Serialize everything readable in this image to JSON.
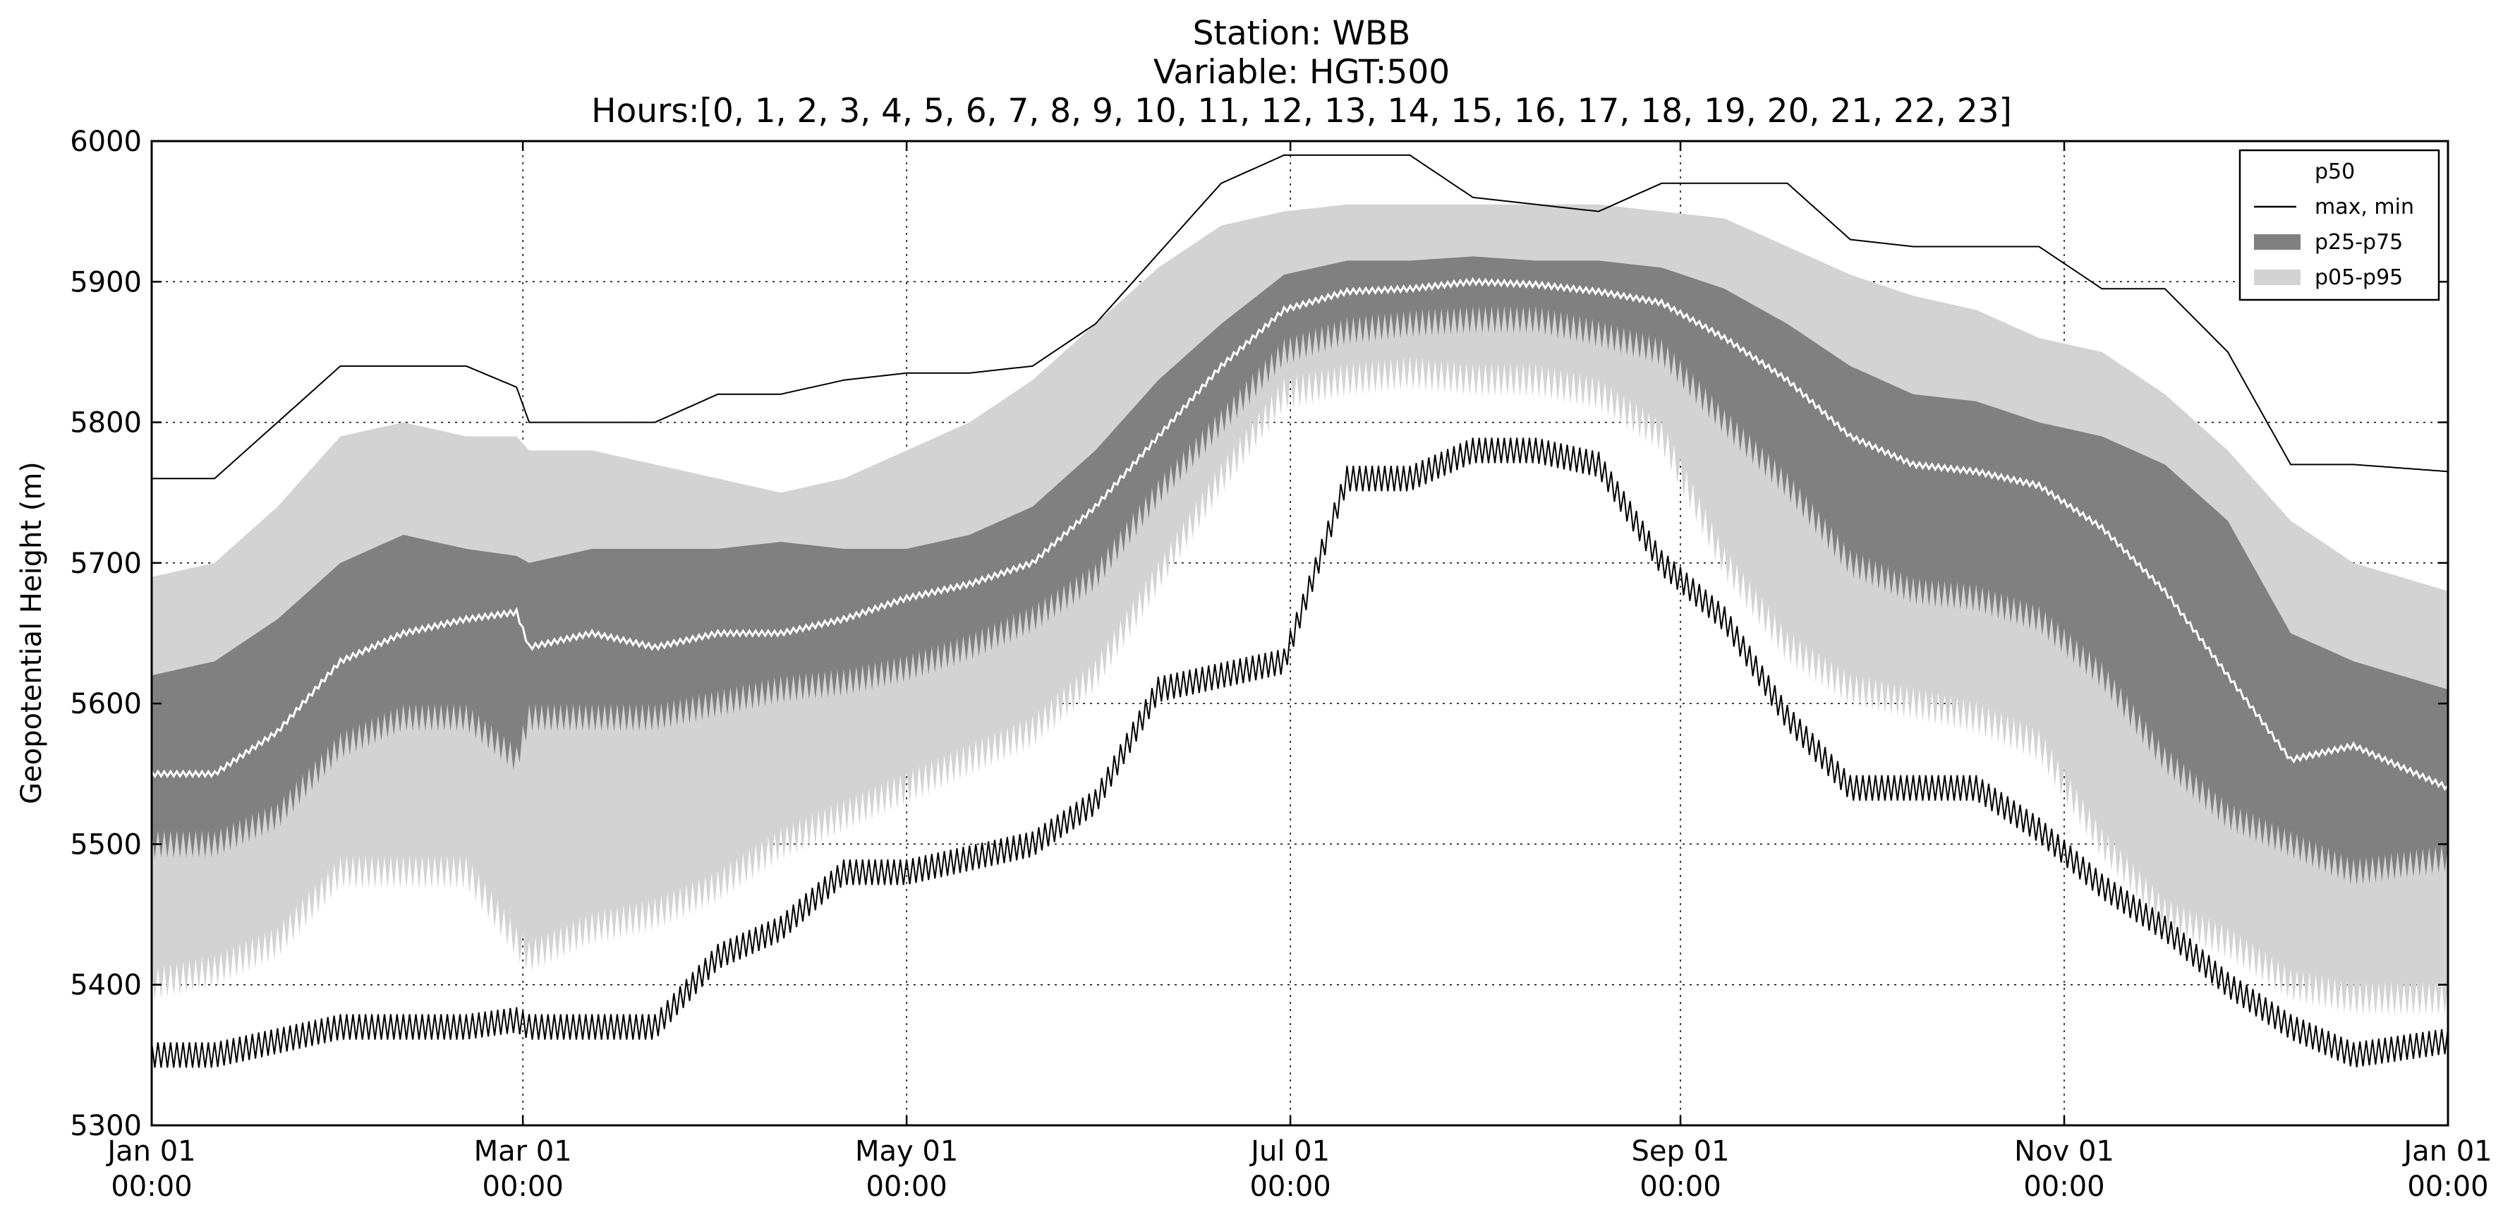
{
  "chart_data": {
    "type": "area",
    "title_lines": [
      "Station: WBB",
      "Variable: HGT:500",
      "Hours:[0, 1, 2, 3, 4, 5, 6, 7, 8, 9, 10, 11, 12, 13, 14, 15, 16, 17, 18, 19, 20, 21, 22, 23]"
    ],
    "xlabel": "",
    "ylabel": "Geopotential Height (m)",
    "ylim": [
      5300,
      6000
    ],
    "xlim_days": [
      0,
      365
    ],
    "y_ticks": [
      5300,
      5400,
      5500,
      5600,
      5700,
      5800,
      5900,
      6000
    ],
    "x_ticks": [
      {
        "day": 0,
        "line1": "Jan 01",
        "line2": "00:00"
      },
      {
        "day": 59,
        "line1": "Mar 01",
        "line2": "00:00"
      },
      {
        "day": 120,
        "line1": "May 01",
        "line2": "00:00"
      },
      {
        "day": 181,
        "line1": "Jul 01",
        "line2": "00:00"
      },
      {
        "day": 243,
        "line1": "Sep 01",
        "line2": "00:00"
      },
      {
        "day": 304,
        "line1": "Nov 01",
        "line2": "00:00"
      },
      {
        "day": 365,
        "line1": "Jan 01",
        "line2": "00:00"
      }
    ],
    "grid": true,
    "legend_position": "top-right",
    "legend": [
      {
        "label": "p50",
        "style": "line",
        "color": "#ffffff"
      },
      {
        "label": "max, min",
        "style": "line",
        "color": "#000000"
      },
      {
        "label": "p25-p75",
        "style": "fill",
        "color": "#808080"
      },
      {
        "label": "p05-p95",
        "style": "fill",
        "color": "#d3d3d3"
      }
    ],
    "x_days": [
      0,
      10,
      20,
      30,
      40,
      50,
      58,
      60,
      70,
      80,
      90,
      100,
      110,
      120,
      130,
      140,
      150,
      160,
      170,
      180,
      190,
      200,
      210,
      220,
      230,
      240,
      250,
      260,
      270,
      280,
      290,
      300,
      310,
      320,
      330,
      340,
      350,
      365
    ],
    "series": [
      {
        "name": "p50",
        "values": [
          5550,
          5550,
          5580,
          5630,
          5650,
          5660,
          5665,
          5640,
          5650,
          5640,
          5650,
          5650,
          5660,
          5675,
          5685,
          5700,
          5740,
          5790,
          5840,
          5880,
          5893,
          5895,
          5900,
          5898,
          5893,
          5885,
          5860,
          5830,
          5790,
          5770,
          5765,
          5755,
          5725,
          5680,
          5620,
          5560,
          5570,
          5540
        ]
      },
      {
        "name": "p25",
        "values": [
          5500,
          5500,
          5520,
          5570,
          5590,
          5590,
          5560,
          5590,
          5590,
          5590,
          5600,
          5610,
          5615,
          5625,
          5640,
          5660,
          5690,
          5750,
          5800,
          5850,
          5865,
          5870,
          5873,
          5873,
          5863,
          5850,
          5800,
          5755,
          5700,
          5680,
          5675,
          5660,
          5620,
          5560,
          5520,
          5500,
          5480,
          5490
        ]
      },
      {
        "name": "p75",
        "values": [
          5620,
          5630,
          5660,
          5700,
          5720,
          5710,
          5705,
          5700,
          5710,
          5710,
          5710,
          5715,
          5710,
          5710,
          5720,
          5740,
          5780,
          5830,
          5870,
          5905,
          5915,
          5915,
          5918,
          5915,
          5915,
          5910,
          5895,
          5870,
          5840,
          5820,
          5815,
          5800,
          5790,
          5770,
          5730,
          5650,
          5630,
          5610
        ]
      },
      {
        "name": "p05",
        "values": [
          5400,
          5410,
          5430,
          5480,
          5480,
          5480,
          5430,
          5420,
          5440,
          5450,
          5470,
          5500,
          5520,
          5540,
          5560,
          5580,
          5620,
          5690,
          5760,
          5820,
          5830,
          5835,
          5830,
          5830,
          5820,
          5790,
          5700,
          5640,
          5610,
          5600,
          5590,
          5570,
          5500,
          5450,
          5430,
          5400,
          5390,
          5390
        ]
      },
      {
        "name": "p95",
        "values": [
          5690,
          5700,
          5740,
          5790,
          5800,
          5790,
          5790,
          5780,
          5780,
          5770,
          5760,
          5750,
          5760,
          5780,
          5800,
          5830,
          5870,
          5910,
          5940,
          5950,
          5955,
          5955,
          5955,
          5955,
          5955,
          5950,
          5945,
          5925,
          5905,
          5890,
          5880,
          5860,
          5850,
          5820,
          5780,
          5730,
          5700,
          5680
        ]
      },
      {
        "name": "max",
        "values": [
          5760,
          5760,
          5800,
          5840,
          5840,
          5840,
          5825,
          5800,
          5800,
          5800,
          5820,
          5820,
          5830,
          5835,
          5835,
          5840,
          5870,
          5920,
          5970,
          5990,
          5990,
          5990,
          5960,
          5955,
          5950,
          5970,
          5970,
          5970,
          5930,
          5925,
          5925,
          5925,
          5895,
          5895,
          5850,
          5770,
          5770,
          5765
        ]
      },
      {
        "name": "min",
        "values": [
          5350,
          5350,
          5360,
          5370,
          5370,
          5370,
          5375,
          5370,
          5370,
          5370,
          5420,
          5440,
          5480,
          5480,
          5490,
          5500,
          5530,
          5610,
          5620,
          5630,
          5760,
          5760,
          5780,
          5780,
          5770,
          5700,
          5660,
          5590,
          5540,
          5540,
          5540,
          5510,
          5470,
          5440,
          5400,
          5370,
          5350,
          5360
        ]
      }
    ]
  }
}
